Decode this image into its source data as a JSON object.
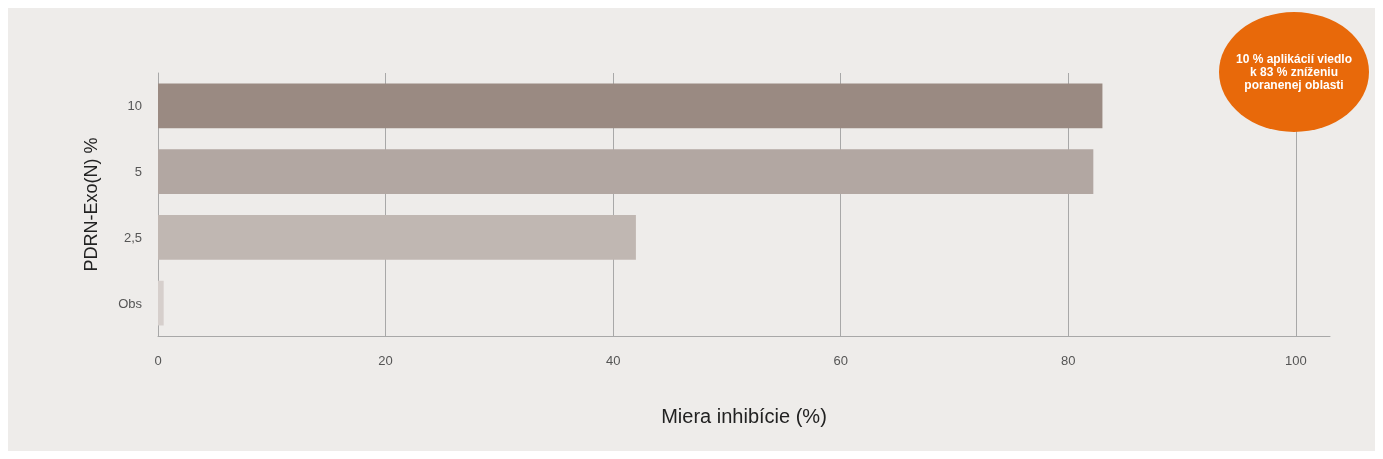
{
  "chart_data": {
    "type": "bar",
    "orientation": "horizontal",
    "xlabel": "Miera inhibície (%)",
    "ylabel": "PDRN-Exo(N) %",
    "categories": [
      "10",
      "5",
      "2,5",
      "Obs"
    ],
    "values": [
      83,
      82.2,
      42,
      0.5
    ],
    "colors": [
      "#9a8a82",
      "#b2a7a2",
      "#c0b7b2",
      "#d6cfcc"
    ],
    "xlim": [
      0,
      103
    ],
    "xticks": [
      0,
      20,
      40,
      60,
      80,
      100
    ],
    "grid": "x",
    "annotations": [
      "10 % aplikácií viedlo k 83 % zníženiu poranenej oblasti"
    ]
  }
}
